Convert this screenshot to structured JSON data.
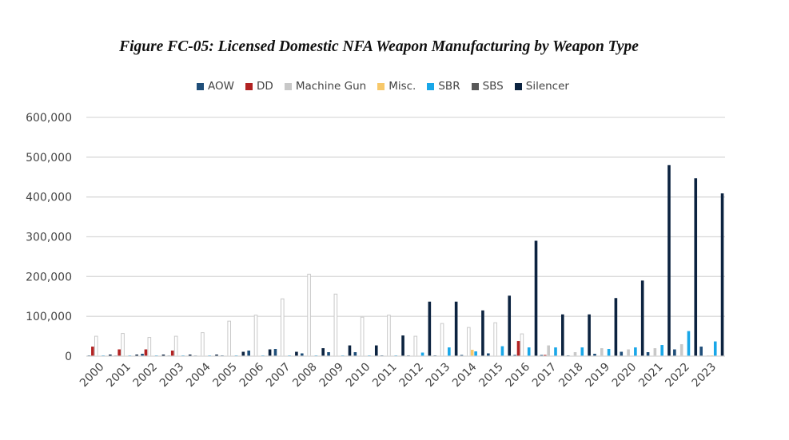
{
  "chart_data": {
    "type": "bar",
    "title": "Figure FC-05: Licensed Domestic NFA Weapon Manufacturing by Weapon Type",
    "xlabel": "",
    "ylabel": "",
    "ylim": [
      0,
      600000
    ],
    "yticks": [
      "0",
      "100,000",
      "200,000",
      "300,000",
      "400,000",
      "500,000",
      "600,000"
    ],
    "ytick_values": [
      0,
      100000,
      200000,
      300000,
      400000,
      500000,
      600000
    ],
    "grid": true,
    "legend_position": "top",
    "categories": [
      "2000",
      "2001",
      "2002",
      "2003",
      "2004",
      "2005",
      "2006",
      "2007",
      "2008",
      "2009",
      "2010",
      "2011",
      "2012",
      "2013",
      "2014",
      "2015",
      "2016",
      "2017",
      "2018",
      "2019",
      "2020",
      "2021",
      "2022",
      "2023"
    ],
    "series": [
      {
        "name": "AOW",
        "color": "#1f4e79",
        "values": [
          2000,
          1500,
          6000,
          1500,
          1500,
          2000,
          14000,
          18000,
          7000,
          10000,
          10000,
          2000,
          2000,
          2000,
          3000,
          7000,
          3000,
          3000,
          2000,
          6000,
          11000,
          10000,
          17000,
          24000
        ]
      },
      {
        "name": "DD",
        "color": "#b22222",
        "values": [
          24000,
          17000,
          17000,
          14000,
          1000,
          1000,
          500,
          500,
          500,
          500,
          500,
          500,
          500,
          500,
          500,
          1000,
          38000,
          3000,
          500,
          500,
          500,
          500,
          500,
          500
        ]
      },
      {
        "name": "Machine Gun",
        "color": "#c8c8c8",
        "values": [
          50000,
          57000,
          47000,
          50000,
          59000,
          88000,
          103000,
          144000,
          206000,
          156000,
          98000,
          103000,
          50000,
          82000,
          72000,
          84000,
          56000,
          27000,
          10000,
          20000,
          17000,
          20000,
          30000,
          2000
        ]
      },
      {
        "name": "Misc.",
        "color": "#f7c86a",
        "values": [
          500,
          500,
          500,
          500,
          500,
          500,
          500,
          500,
          500,
          500,
          500,
          500,
          500,
          500,
          16000,
          500,
          500,
          500,
          500,
          500,
          500,
          500,
          500,
          2000
        ]
      },
      {
        "name": "SBR",
        "color": "#19a7e8",
        "values": [
          2000,
          2000,
          2000,
          2000,
          2000,
          2000,
          2000,
          2000,
          2000,
          2000,
          2000,
          2000,
          9000,
          22000,
          12000,
          25000,
          22000,
          22000,
          22000,
          18000,
          22000,
          28000,
          63000,
          37000
        ]
      },
      {
        "name": "SBS",
        "color": "#595959",
        "values": [
          1000,
          1000,
          1000,
          1000,
          1000,
          1000,
          1000,
          1000,
          1000,
          1000,
          1000,
          1000,
          1000,
          1000,
          1000,
          1000,
          1000,
          1000,
          1000,
          1000,
          1000,
          1000,
          1000,
          1000
        ]
      },
      {
        "name": "Silencer",
        "color": "#0c2340",
        "values": [
          4000,
          4000,
          4000,
          4000,
          4000,
          11000,
          17000,
          11000,
          20000,
          27000,
          27000,
          52000,
          137000,
          137000,
          115000,
          152000,
          290000,
          105000,
          105000,
          146000,
          190000,
          480000,
          447000,
          409000
        ]
      }
    ]
  }
}
